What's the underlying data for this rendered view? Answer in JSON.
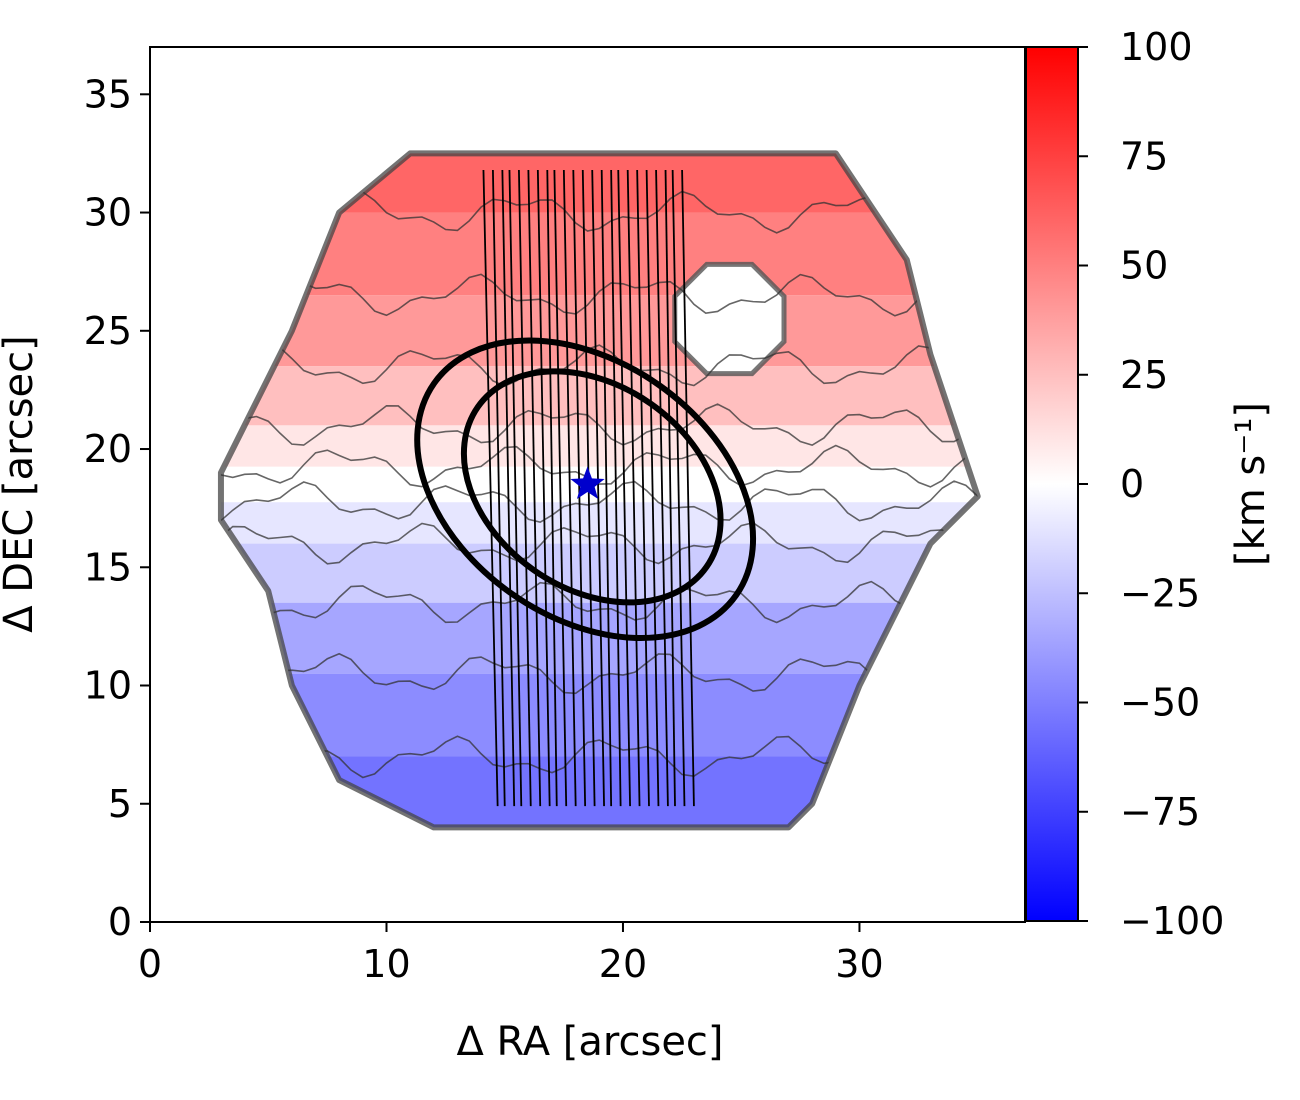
{
  "chart_data": {
    "type": "heatmap",
    "title": "",
    "xlabel": "Δ RA  [arcsec]",
    "ylabel": "Δ DEC [arcsec]",
    "xlim": [
      0,
      37
    ],
    "ylim": [
      0,
      37
    ],
    "xticks": [
      0,
      10,
      20,
      30
    ],
    "yticks": [
      0,
      5,
      10,
      15,
      20,
      25,
      30,
      35
    ],
    "colorbar": {
      "label": "[km s⁻¹]",
      "range": [
        -100,
        100
      ],
      "ticks": [
        100,
        75,
        50,
        25,
        0,
        -25,
        -50,
        -75,
        -100
      ],
      "tick_labels": [
        "100",
        "75",
        "50",
        "25",
        "0",
        "−25",
        "−50",
        "−75",
        "−100"
      ],
      "colormap": "bwr",
      "colors": {
        "low": "#0000ff",
        "mid": "#ffffff",
        "high": "#ff0000"
      }
    },
    "velocity_field": {
      "description_hex_region": true,
      "outline": [
        [
          11,
          32.5
        ],
        [
          29,
          32.5
        ],
        [
          32,
          28
        ],
        [
          33,
          24
        ],
        [
          35,
          18
        ],
        [
          33,
          16
        ],
        [
          32,
          14
        ],
        [
          30,
          10
        ],
        [
          28,
          5
        ],
        [
          27,
          4
        ],
        [
          12,
          4
        ],
        [
          8,
          6
        ],
        [
          6,
          10
        ],
        [
          5,
          14
        ],
        [
          3,
          17
        ],
        [
          3,
          19
        ],
        [
          4,
          21
        ],
        [
          6,
          25
        ],
        [
          8,
          30
        ]
      ],
      "hole": {
        "center": [
          24.5,
          25.5
        ],
        "radius": 2.5
      },
      "velocity_levels": [
        [
          32,
          60
        ],
        [
          28,
          50
        ],
        [
          25,
          40
        ],
        [
          22,
          25
        ],
        [
          20,
          10
        ],
        [
          18.5,
          0
        ],
        [
          17,
          -10
        ],
        [
          15,
          -20
        ],
        [
          12,
          -35
        ],
        [
          9,
          -45
        ],
        [
          5,
          -55
        ]
      ]
    },
    "ellipses": [
      {
        "center": [
          18.4,
          18.3
        ],
        "semi_major": 7.8,
        "semi_minor": 5.4,
        "angle_deg": -35
      },
      {
        "center": [
          18.7,
          18.4
        ],
        "semi_major": 5.9,
        "semi_minor": 4.3,
        "angle_deg": -35
      }
    ],
    "slits": {
      "x_top": [
        14.1,
        14.5,
        14.9,
        15.2,
        15.6,
        16.0,
        16.4,
        16.8,
        17.1,
        17.5,
        17.9,
        18.3,
        18.7,
        19.1,
        19.5,
        19.8,
        20.2,
        20.6,
        21.0,
        21.4,
        21.8,
        22.1,
        22.5
      ],
      "x_bottom": [
        14.7,
        15.0,
        15.4,
        15.7,
        16.1,
        16.5,
        16.9,
        17.2,
        17.6,
        18.0,
        18.4,
        18.8,
        19.2,
        19.5,
        19.9,
        20.3,
        20.7,
        21.1,
        21.5,
        21.9,
        22.2,
        22.6,
        23.0
      ],
      "y_top": 31.8,
      "y_bottom": 4.9
    },
    "star": {
      "x": 18.5,
      "y": 18.5,
      "color": "#0000cc"
    }
  }
}
